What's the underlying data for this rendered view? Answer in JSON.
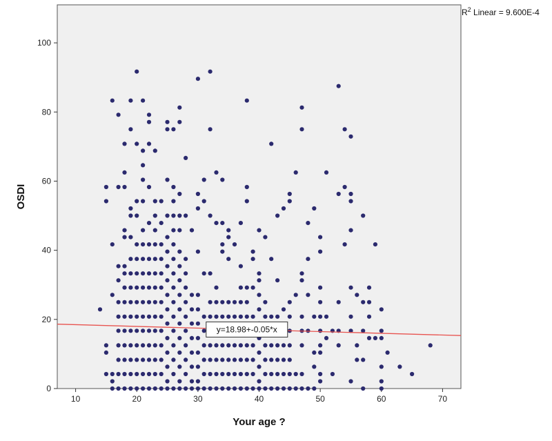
{
  "chart_data": {
    "type": "scatter",
    "title": "",
    "xlabel": "Your age ?",
    "ylabel": "OSDI",
    "xlim": [
      7,
      73
    ],
    "ylim": [
      0,
      111
    ],
    "xticks": [
      10,
      20,
      30,
      40,
      50,
      60,
      70
    ],
    "yticks": [
      0,
      20,
      40,
      60,
      80,
      100
    ],
    "grid": false,
    "background": "#f0f0f0",
    "point_color": "#2b2a6e",
    "fit_line_color": "#e8534f",
    "fit_line": {
      "intercept": 18.98,
      "slope": -0.05,
      "label": "y=18.98+-0.05*x",
      "label_at_x": 38
    },
    "r2_label": {
      "prefix": "R",
      "sup": "2",
      "suffix": " Linear = 9.600E-4"
    },
    "points": [
      [
        14,
        22.9
      ],
      [
        15,
        58.3
      ],
      [
        15,
        54.2
      ],
      [
        15,
        12.5
      ],
      [
        15,
        10.4
      ],
      [
        15,
        4.2
      ],
      [
        16,
        83.3
      ],
      [
        16,
        41.7
      ],
      [
        16,
        27.1
      ],
      [
        16,
        4.2
      ],
      [
        16,
        2.1
      ],
      [
        16,
        0
      ],
      [
        17,
        79.2
      ],
      [
        17,
        58.3
      ],
      [
        17,
        35.4
      ],
      [
        17,
        31.3
      ],
      [
        17,
        25.0
      ],
      [
        17,
        20.8
      ],
      [
        17,
        16.7
      ],
      [
        17,
        12.5
      ],
      [
        17,
        8.3
      ],
      [
        17,
        4.2
      ],
      [
        17,
        0
      ],
      [
        18,
        70.8
      ],
      [
        18,
        62.5
      ],
      [
        18,
        58.3
      ],
      [
        18,
        45.8
      ],
      [
        18,
        43.8
      ],
      [
        18,
        35.4
      ],
      [
        18,
        33.3
      ],
      [
        18,
        29.2
      ],
      [
        18,
        25.0
      ],
      [
        18,
        20.8
      ],
      [
        18,
        16.7
      ],
      [
        18,
        12.5
      ],
      [
        18,
        8.3
      ],
      [
        18,
        4.2
      ],
      [
        18,
        0
      ],
      [
        19,
        83.3
      ],
      [
        19,
        75.0
      ],
      [
        19,
        52.1
      ],
      [
        19,
        50.0
      ],
      [
        19,
        43.8
      ],
      [
        19,
        37.5
      ],
      [
        19,
        33.3
      ],
      [
        19,
        29.2
      ],
      [
        19,
        25.0
      ],
      [
        19,
        20.8
      ],
      [
        19,
        16.7
      ],
      [
        19,
        12.5
      ],
      [
        19,
        8.3
      ],
      [
        19,
        4.2
      ],
      [
        19,
        0
      ],
      [
        20,
        91.7
      ],
      [
        20,
        70.8
      ],
      [
        20,
        54.2
      ],
      [
        20,
        50.0
      ],
      [
        20,
        41.7
      ],
      [
        20,
        37.5
      ],
      [
        20,
        33.3
      ],
      [
        20,
        29.2
      ],
      [
        20,
        25.0
      ],
      [
        20,
        20.8
      ],
      [
        20,
        16.7
      ],
      [
        20,
        12.5
      ],
      [
        20,
        8.3
      ],
      [
        20,
        4.2
      ],
      [
        20,
        0
      ],
      [
        21,
        83.3
      ],
      [
        21,
        68.8
      ],
      [
        21,
        64.6
      ],
      [
        21,
        60.4
      ],
      [
        21,
        54.2
      ],
      [
        21,
        45.8
      ],
      [
        21,
        41.7
      ],
      [
        21,
        37.5
      ],
      [
        21,
        33.3
      ],
      [
        21,
        29.2
      ],
      [
        21,
        25.0
      ],
      [
        21,
        20.8
      ],
      [
        21,
        16.7
      ],
      [
        21,
        12.5
      ],
      [
        21,
        8.3
      ],
      [
        21,
        4.2
      ],
      [
        21,
        0
      ],
      [
        22,
        79.2
      ],
      [
        22,
        77.1
      ],
      [
        22,
        70.8
      ],
      [
        22,
        58.3
      ],
      [
        22,
        47.9
      ],
      [
        22,
        41.7
      ],
      [
        22,
        37.5
      ],
      [
        22,
        33.3
      ],
      [
        22,
        29.2
      ],
      [
        22,
        25.0
      ],
      [
        22,
        20.8
      ],
      [
        22,
        16.7
      ],
      [
        22,
        12.5
      ],
      [
        22,
        8.3
      ],
      [
        22,
        4.2
      ],
      [
        22,
        0
      ],
      [
        23,
        68.8
      ],
      [
        23,
        54.2
      ],
      [
        23,
        50.0
      ],
      [
        23,
        45.8
      ],
      [
        23,
        41.7
      ],
      [
        23,
        37.5
      ],
      [
        23,
        33.3
      ],
      [
        23,
        29.2
      ],
      [
        23,
        25.0
      ],
      [
        23,
        20.8
      ],
      [
        23,
        16.7
      ],
      [
        23,
        12.5
      ],
      [
        23,
        8.3
      ],
      [
        23,
        4.2
      ],
      [
        23,
        0
      ],
      [
        24,
        54.2
      ],
      [
        24,
        47.9
      ],
      [
        24,
        41.7
      ],
      [
        24,
        37.5
      ],
      [
        24,
        33.3
      ],
      [
        24,
        29.2
      ],
      [
        24,
        25.0
      ],
      [
        24,
        20.8
      ],
      [
        24,
        16.7
      ],
      [
        24,
        12.5
      ],
      [
        24,
        8.3
      ],
      [
        24,
        4.2
      ],
      [
        24,
        0
      ],
      [
        25,
        77.1
      ],
      [
        25,
        75.0
      ],
      [
        25,
        60.4
      ],
      [
        25,
        50.0
      ],
      [
        25,
        43.8
      ],
      [
        25,
        39.6
      ],
      [
        25,
        35.4
      ],
      [
        25,
        31.3
      ],
      [
        25,
        27.1
      ],
      [
        25,
        22.9
      ],
      [
        25,
        18.8
      ],
      [
        25,
        14.6
      ],
      [
        25,
        10.4
      ],
      [
        25,
        6.3
      ],
      [
        25,
        2.1
      ],
      [
        25,
        0
      ],
      [
        26,
        75.0
      ],
      [
        26,
        58.3
      ],
      [
        26,
        54.2
      ],
      [
        26,
        50.0
      ],
      [
        26,
        45.8
      ],
      [
        26,
        41.7
      ],
      [
        26,
        37.5
      ],
      [
        26,
        33.3
      ],
      [
        26,
        29.2
      ],
      [
        26,
        25.0
      ],
      [
        26,
        20.8
      ],
      [
        26,
        16.7
      ],
      [
        26,
        12.5
      ],
      [
        26,
        8.3
      ],
      [
        26,
        4.2
      ],
      [
        26,
        0
      ],
      [
        27,
        81.3
      ],
      [
        27,
        77.1
      ],
      [
        27,
        56.3
      ],
      [
        27,
        50.0
      ],
      [
        27,
        45.8
      ],
      [
        27,
        39.6
      ],
      [
        27,
        35.4
      ],
      [
        27,
        31.3
      ],
      [
        27,
        27.1
      ],
      [
        27,
        22.9
      ],
      [
        27,
        18.8
      ],
      [
        27,
        14.6
      ],
      [
        27,
        10.4
      ],
      [
        27,
        6.3
      ],
      [
        27,
        2.1
      ],
      [
        27,
        0
      ],
      [
        28,
        66.7
      ],
      [
        28,
        50.0
      ],
      [
        28,
        37.5
      ],
      [
        28,
        33.3
      ],
      [
        28,
        29.2
      ],
      [
        28,
        25.0
      ],
      [
        28,
        20.8
      ],
      [
        28,
        16.7
      ],
      [
        28,
        12.5
      ],
      [
        28,
        8.3
      ],
      [
        28,
        4.2
      ],
      [
        28,
        0
      ],
      [
        29,
        45.8
      ],
      [
        29,
        27.1
      ],
      [
        29,
        22.9
      ],
      [
        29,
        18.8
      ],
      [
        29,
        14.6
      ],
      [
        29,
        10.4
      ],
      [
        29,
        6.3
      ],
      [
        29,
        2.1
      ],
      [
        29,
        0
      ],
      [
        30,
        89.6
      ],
      [
        30,
        56.3
      ],
      [
        30,
        52.1
      ],
      [
        30,
        39.6
      ],
      [
        30,
        27.1
      ],
      [
        30,
        22.9
      ],
      [
        30,
        18.8
      ],
      [
        30,
        14.6
      ],
      [
        30,
        10.4
      ],
      [
        30,
        6.3
      ],
      [
        30,
        2.1
      ],
      [
        30,
        0
      ],
      [
        31,
        60.4
      ],
      [
        31,
        54.2
      ],
      [
        31,
        33.3
      ],
      [
        31,
        20.8
      ],
      [
        31,
        16.7
      ],
      [
        31,
        12.5
      ],
      [
        31,
        8.3
      ],
      [
        31,
        4.2
      ],
      [
        31,
        0
      ],
      [
        32,
        91.7
      ],
      [
        32,
        75.0
      ],
      [
        32,
        50.0
      ],
      [
        32,
        33.3
      ],
      [
        32,
        25.0
      ],
      [
        32,
        20.8
      ],
      [
        32,
        16.7
      ],
      [
        32,
        12.5
      ],
      [
        32,
        8.3
      ],
      [
        32,
        4.2
      ],
      [
        32,
        0
      ],
      [
        33,
        62.5
      ],
      [
        33,
        47.9
      ],
      [
        33,
        29.2
      ],
      [
        33,
        25.0
      ],
      [
        33,
        20.8
      ],
      [
        33,
        16.7
      ],
      [
        33,
        12.5
      ],
      [
        33,
        8.3
      ],
      [
        33,
        4.2
      ],
      [
        33,
        0
      ],
      [
        34,
        60.4
      ],
      [
        34,
        47.9
      ],
      [
        34,
        41.7
      ],
      [
        34,
        39.6
      ],
      [
        34,
        25.0
      ],
      [
        34,
        20.8
      ],
      [
        34,
        16.7
      ],
      [
        34,
        12.5
      ],
      [
        34,
        8.3
      ],
      [
        34,
        4.2
      ],
      [
        34,
        0
      ],
      [
        35,
        45.8
      ],
      [
        35,
        43.8
      ],
      [
        35,
        37.5
      ],
      [
        35,
        25.0
      ],
      [
        35,
        20.8
      ],
      [
        35,
        16.7
      ],
      [
        35,
        12.5
      ],
      [
        35,
        8.3
      ],
      [
        35,
        4.2
      ],
      [
        35,
        0
      ],
      [
        36,
        41.7
      ],
      [
        36,
        25.0
      ],
      [
        36,
        20.8
      ],
      [
        36,
        16.7
      ],
      [
        36,
        12.5
      ],
      [
        36,
        8.3
      ],
      [
        36,
        4.2
      ],
      [
        36,
        0
      ],
      [
        37,
        47.9
      ],
      [
        37,
        35.4
      ],
      [
        37,
        29.2
      ],
      [
        37,
        25.0
      ],
      [
        37,
        20.8
      ],
      [
        37,
        16.7
      ],
      [
        37,
        12.5
      ],
      [
        37,
        8.3
      ],
      [
        37,
        4.2
      ],
      [
        37,
        0
      ],
      [
        38,
        83.3
      ],
      [
        38,
        58.3
      ],
      [
        38,
        54.2
      ],
      [
        38,
        29.2
      ],
      [
        38,
        25.0
      ],
      [
        38,
        20.8
      ],
      [
        38,
        16.7
      ],
      [
        38,
        12.5
      ],
      [
        38,
        8.3
      ],
      [
        38,
        4.2
      ],
      [
        38,
        0
      ],
      [
        39,
        39.6
      ],
      [
        39,
        37.5
      ],
      [
        39,
        29.2
      ],
      [
        39,
        20.8
      ],
      [
        39,
        16.7
      ],
      [
        39,
        12.5
      ],
      [
        39,
        8.3
      ],
      [
        39,
        4.2
      ],
      [
        39,
        0
      ],
      [
        40,
        45.8
      ],
      [
        40,
        33.3
      ],
      [
        40,
        31.3
      ],
      [
        40,
        27.1
      ],
      [
        40,
        22.9
      ],
      [
        40,
        18.8
      ],
      [
        40,
        14.6
      ],
      [
        40,
        10.4
      ],
      [
        40,
        6.3
      ],
      [
        40,
        2.1
      ],
      [
        40,
        0
      ],
      [
        41,
        43.8
      ],
      [
        41,
        25.0
      ],
      [
        41,
        20.8
      ],
      [
        41,
        16.7
      ],
      [
        41,
        12.5
      ],
      [
        41,
        8.3
      ],
      [
        41,
        4.2
      ],
      [
        41,
        0
      ],
      [
        42,
        70.8
      ],
      [
        42,
        37.5
      ],
      [
        42,
        20.8
      ],
      [
        42,
        16.7
      ],
      [
        42,
        12.5
      ],
      [
        42,
        8.3
      ],
      [
        42,
        4.2
      ],
      [
        42,
        0
      ],
      [
        43,
        50.0
      ],
      [
        43,
        31.3
      ],
      [
        43,
        20.8
      ],
      [
        43,
        16.7
      ],
      [
        43,
        12.5
      ],
      [
        43,
        8.3
      ],
      [
        43,
        4.2
      ],
      [
        43,
        0
      ],
      [
        44,
        52.1
      ],
      [
        44,
        22.9
      ],
      [
        44,
        16.7
      ],
      [
        44,
        12.5
      ],
      [
        44,
        8.3
      ],
      [
        44,
        4.2
      ],
      [
        44,
        0
      ],
      [
        45,
        56.3
      ],
      [
        45,
        54.2
      ],
      [
        45,
        25.0
      ],
      [
        45,
        20.8
      ],
      [
        45,
        16.7
      ],
      [
        45,
        12.5
      ],
      [
        45,
        8.3
      ],
      [
        45,
        4.2
      ],
      [
        45,
        0
      ],
      [
        46,
        62.5
      ],
      [
        46,
        27.1
      ],
      [
        46,
        4.2
      ],
      [
        46,
        0
      ],
      [
        47,
        81.3
      ],
      [
        47,
        75.0
      ],
      [
        47,
        33.3
      ],
      [
        47,
        31.3
      ],
      [
        47,
        20.8
      ],
      [
        47,
        16.7
      ],
      [
        47,
        12.5
      ],
      [
        47,
        4.2
      ],
      [
        47,
        0
      ],
      [
        48,
        47.9
      ],
      [
        48,
        37.5
      ],
      [
        48,
        27.1
      ],
      [
        48,
        16.7
      ],
      [
        48,
        0
      ],
      [
        49,
        52.1
      ],
      [
        49,
        20.8
      ],
      [
        49,
        10.4
      ],
      [
        49,
        6.3
      ],
      [
        49,
        0
      ],
      [
        50,
        43.8
      ],
      [
        50,
        39.6
      ],
      [
        50,
        29.2
      ],
      [
        50,
        25.0
      ],
      [
        50,
        20.8
      ],
      [
        50,
        16.7
      ],
      [
        50,
        12.5
      ],
      [
        50,
        10.4
      ],
      [
        50,
        4.2
      ],
      [
        50,
        2.1
      ],
      [
        51,
        62.5
      ],
      [
        51,
        20.8
      ],
      [
        51,
        14.6
      ],
      [
        52,
        16.7
      ],
      [
        52,
        4.2
      ],
      [
        53,
        87.5
      ],
      [
        53,
        56.3
      ],
      [
        53,
        25.0
      ],
      [
        53,
        16.7
      ],
      [
        53,
        12.5
      ],
      [
        54,
        75.0
      ],
      [
        54,
        58.3
      ],
      [
        54,
        41.7
      ],
      [
        55,
        72.9
      ],
      [
        55,
        56.3
      ],
      [
        55,
        54.2
      ],
      [
        55,
        45.8
      ],
      [
        55,
        29.2
      ],
      [
        55,
        20.8
      ],
      [
        55,
        16.7
      ],
      [
        55,
        2.1
      ],
      [
        56,
        27.1
      ],
      [
        56,
        12.5
      ],
      [
        56,
        8.3
      ],
      [
        57,
        50.0
      ],
      [
        57,
        25.0
      ],
      [
        57,
        16.7
      ],
      [
        57,
        8.3
      ],
      [
        57,
        0
      ],
      [
        58,
        29.2
      ],
      [
        58,
        25.0
      ],
      [
        58,
        20.8
      ],
      [
        58,
        14.6
      ],
      [
        59,
        41.7
      ],
      [
        59,
        14.6
      ],
      [
        60,
        22.9
      ],
      [
        60,
        16.7
      ],
      [
        60,
        14.6
      ],
      [
        60,
        6.3
      ],
      [
        60,
        2.1
      ],
      [
        60,
        0
      ],
      [
        61,
        10.4
      ],
      [
        63,
        6.3
      ],
      [
        65,
        4.2
      ],
      [
        68,
        12.5
      ]
    ]
  }
}
